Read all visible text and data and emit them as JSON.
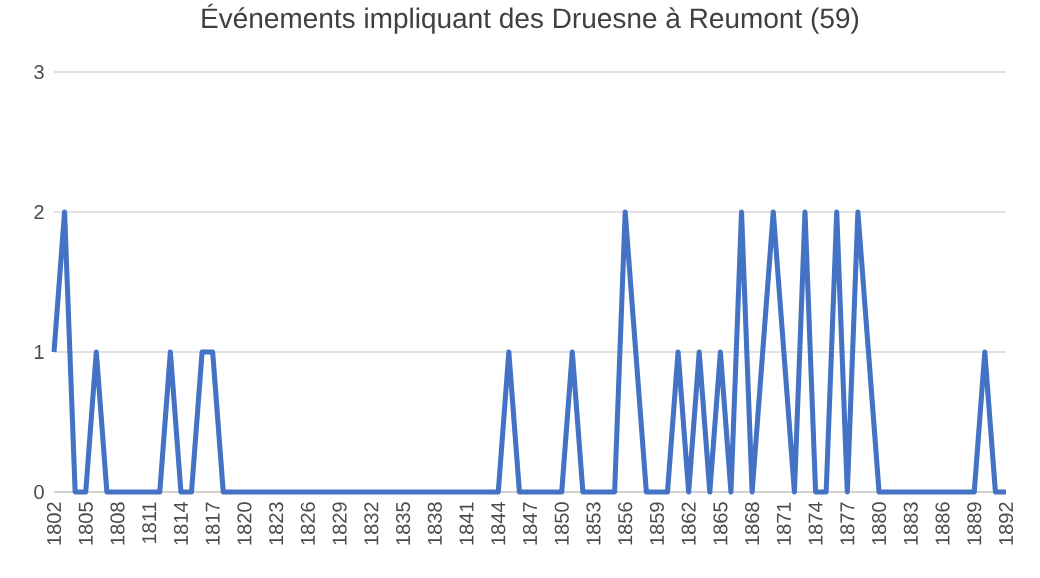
{
  "chart_data": {
    "type": "line",
    "title": "Événements impliquant des Druesne à Reumont (59)",
    "x": [
      1802,
      1803,
      1804,
      1805,
      1806,
      1807,
      1808,
      1809,
      1810,
      1811,
      1812,
      1813,
      1814,
      1815,
      1816,
      1817,
      1818,
      1819,
      1820,
      1821,
      1822,
      1823,
      1824,
      1825,
      1826,
      1827,
      1828,
      1829,
      1830,
      1831,
      1832,
      1833,
      1834,
      1835,
      1836,
      1837,
      1838,
      1839,
      1840,
      1841,
      1842,
      1843,
      1844,
      1845,
      1846,
      1847,
      1848,
      1849,
      1850,
      1851,
      1852,
      1853,
      1854,
      1855,
      1856,
      1857,
      1858,
      1859,
      1860,
      1861,
      1862,
      1863,
      1864,
      1865,
      1866,
      1867,
      1868,
      1869,
      1870,
      1871,
      1872,
      1873,
      1874,
      1875,
      1876,
      1877,
      1878,
      1879,
      1880,
      1881,
      1882,
      1883,
      1884,
      1885,
      1886,
      1887,
      1888,
      1889,
      1890,
      1891,
      1892
    ],
    "values": [
      1,
      2,
      0,
      0,
      1,
      0,
      0,
      0,
      0,
      0,
      0,
      1,
      0,
      0,
      1,
      1,
      0,
      0,
      0,
      0,
      0,
      0,
      0,
      0,
      0,
      0,
      0,
      0,
      0,
      0,
      0,
      0,
      0,
      0,
      0,
      0,
      0,
      0,
      0,
      0,
      0,
      0,
      0,
      1,
      0,
      0,
      0,
      0,
      0,
      1,
      0,
      0,
      0,
      0,
      2,
      1,
      0,
      0,
      0,
      1,
      0,
      1,
      0,
      1,
      0,
      2,
      0,
      1,
      2,
      1,
      0,
      2,
      0,
      0,
      2,
      0,
      2,
      1,
      0,
      0,
      0,
      0,
      0,
      0,
      0,
      0,
      0,
      0,
      1,
      0,
      0
    ],
    "color": "#4472c4",
    "xlim": [
      1802,
      1892
    ],
    "xticks": [
      1802,
      1805,
      1808,
      1811,
      1814,
      1817,
      1820,
      1823,
      1826,
      1829,
      1832,
      1835,
      1838,
      1841,
      1844,
      1847,
      1850,
      1853,
      1856,
      1859,
      1862,
      1865,
      1868,
      1871,
      1874,
      1877,
      1880,
      1883,
      1886,
      1889,
      1892
    ],
    "ylim": [
      0,
      3
    ],
    "yticks": [
      0,
      1,
      2,
      3
    ],
    "grid": "y",
    "marker": "none",
    "line_style": "solid"
  }
}
